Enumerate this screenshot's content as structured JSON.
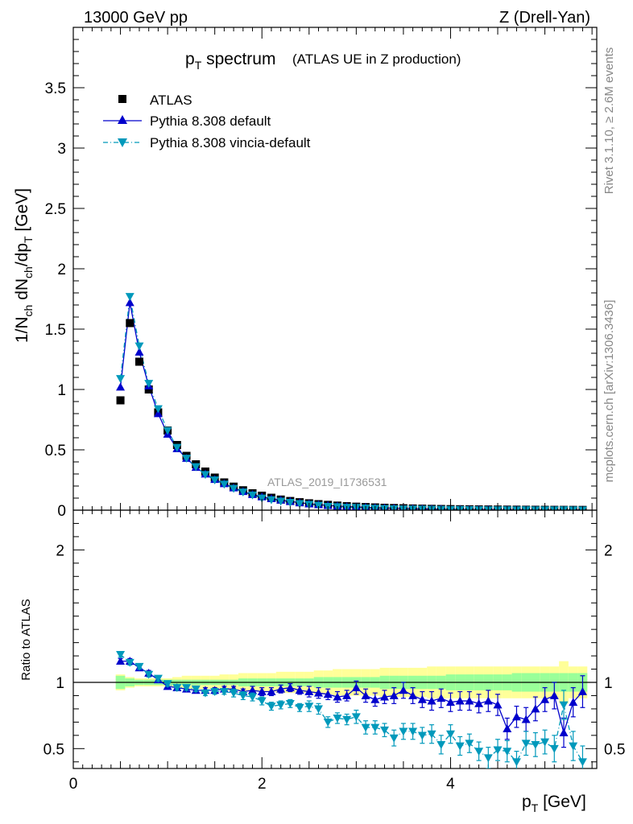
{
  "header": {
    "energy": "13000 GeV pp",
    "process": "Z (Drell-Yan)"
  },
  "main_title": "p",
  "main_title_sub": "T",
  "main_title_rest": " spectrum",
  "main_title_suffix": "(ATLAS UE in Z production)",
  "side_rivet": "Rivet 3.1.10, ≥ 2.6M events",
  "side_mcplots": "mcplots.cern.ch [arXiv:1306.3436]",
  "analysis_id": "ATLAS_2019_I1736531",
  "ylabel_main": "1/N_ch dN_ch/dp_T [GeV]",
  "ylabel_ratio": "Ratio to ATLAS",
  "xlabel": "p_T [GeV]",
  "chart_data": [
    {
      "type": "scatter",
      "panel": "main",
      "x": [
        0.5,
        0.6,
        0.7,
        0.8,
        0.9,
        1.0,
        1.1,
        1.2,
        1.3,
        1.4,
        1.5,
        1.6,
        1.7,
        1.8,
        1.9,
        2.0,
        2.1,
        2.2,
        2.3,
        2.4,
        2.5,
        2.6,
        2.7,
        2.8,
        2.9,
        3.0,
        3.1,
        3.2,
        3.3,
        3.4,
        3.5,
        3.6,
        3.7,
        3.8,
        3.9,
        4.0,
        4.1,
        4.2,
        4.3,
        4.4,
        4.5,
        4.6,
        4.7,
        4.8,
        4.9,
        5.0,
        5.1,
        5.2,
        5.3,
        5.4
      ],
      "series": [
        {
          "name": "ATLAS",
          "marker": "square",
          "color": "#000000",
          "values": [
            0.91,
            1.55,
            1.23,
            1.0,
            0.81,
            0.66,
            0.54,
            0.45,
            0.38,
            0.32,
            0.27,
            0.23,
            0.195,
            0.165,
            0.14,
            0.12,
            0.103,
            0.088,
            0.076,
            0.066,
            0.057,
            0.05,
            0.044,
            0.038,
            0.033,
            0.029,
            0.026,
            0.023,
            0.02,
            0.018,
            0.016,
            0.014,
            0.0125,
            0.011,
            0.0098,
            0.0088,
            0.0079,
            0.007,
            0.0063,
            0.0057,
            0.0051,
            0.0046,
            0.0042,
            0.0038,
            0.0034,
            0.0031,
            0.0028,
            0.0025,
            0.0023,
            0.0021
          ]
        },
        {
          "name": "Pythia 8.308 default",
          "marker": "triangle-up",
          "color": "#0000cc",
          "line": "solid",
          "values": [
            1.02,
            1.72,
            1.31,
            1.03,
            0.8,
            0.63,
            0.51,
            0.43,
            0.355,
            0.3,
            0.255,
            0.22,
            0.185,
            0.155,
            0.13,
            0.111,
            0.096,
            0.084,
            0.073,
            0.062,
            0.053,
            0.046,
            0.039,
            0.034,
            0.029,
            0.028,
            0.023,
            0.02,
            0.018,
            0.016,
            0.015,
            0.0125,
            0.011,
            0.0095,
            0.0085,
            0.0075,
            0.0068,
            0.006,
            0.0053,
            0.0049,
            0.0042,
            0.003,
            0.0031,
            0.0027,
            0.0027,
            0.0027,
            0.0025,
            0.0016,
            0.0019,
            0.002
          ]
        },
        {
          "name": "Pythia 8.308 vincia-default",
          "marker": "triangle-down",
          "color": "#0099bb",
          "line": "dashdot",
          "values": [
            1.09,
            1.77,
            1.36,
            1.05,
            0.84,
            0.66,
            0.52,
            0.43,
            0.36,
            0.295,
            0.25,
            0.215,
            0.18,
            0.15,
            0.125,
            0.1,
            0.086,
            0.074,
            0.064,
            0.054,
            0.047,
            0.04,
            0.031,
            0.028,
            0.023,
            0.022,
            0.017,
            0.015,
            0.013,
            0.011,
            0.01,
            0.009,
            0.0078,
            0.0067,
            0.006,
            0.0052,
            0.0046,
            0.004,
            0.0035,
            0.0024,
            0.0025,
            0.0022,
            0.0017,
            0.0021,
            0.0018,
            0.0017,
            0.0014,
            0.0021,
            0.0012,
            0.0009
          ]
        }
      ],
      "ylim": [
        0,
        4
      ],
      "xlim": [
        0,
        5.55
      ],
      "yticks": [
        "0",
        "0.5",
        "1",
        "1.5",
        "2",
        "2.5",
        "3",
        "3.5"
      ],
      "legend_placement": "top-left"
    },
    {
      "type": "line",
      "panel": "ratio",
      "x": [
        0.5,
        0.6,
        0.7,
        0.8,
        0.9,
        1.0,
        1.1,
        1.2,
        1.3,
        1.4,
        1.5,
        1.6,
        1.7,
        1.8,
        1.9,
        2.0,
        2.1,
        2.2,
        2.3,
        2.4,
        2.5,
        2.6,
        2.7,
        2.8,
        2.9,
        3.0,
        3.1,
        3.2,
        3.3,
        3.4,
        3.5,
        3.6,
        3.7,
        3.8,
        3.9,
        4.0,
        4.1,
        4.2,
        4.3,
        4.4,
        4.5,
        4.6,
        4.7,
        4.8,
        4.9,
        5.0,
        5.1,
        5.2,
        5.3,
        5.4
      ],
      "band_stat_half": [
        0.05,
        0.03,
        0.02,
        0.02,
        0.02,
        0.02,
        0.02,
        0.02,
        0.02,
        0.02,
        0.02,
        0.02,
        0.02,
        0.03,
        0.03,
        0.03,
        0.03,
        0.03,
        0.03,
        0.03,
        0.03,
        0.04,
        0.04,
        0.04,
        0.04,
        0.04,
        0.04,
        0.04,
        0.05,
        0.05,
        0.05,
        0.05,
        0.05,
        0.05,
        0.05,
        0.06,
        0.06,
        0.06,
        0.06,
        0.06,
        0.06,
        0.06,
        0.07,
        0.07,
        0.07,
        0.07,
        0.07,
        0.07,
        0.07,
        0.07
      ],
      "band_total_half": [
        0.06,
        0.04,
        0.03,
        0.03,
        0.03,
        0.03,
        0.04,
        0.05,
        0.05,
        0.05,
        0.05,
        0.06,
        0.06,
        0.07,
        0.07,
        0.07,
        0.07,
        0.08,
        0.08,
        0.08,
        0.08,
        0.09,
        0.09,
        0.1,
        0.1,
        0.1,
        0.1,
        0.1,
        0.11,
        0.11,
        0.11,
        0.11,
        0.11,
        0.12,
        0.12,
        0.12,
        0.12,
        0.12,
        0.12,
        0.12,
        0.12,
        0.12,
        0.12,
        0.12,
        0.12,
        0.12,
        0.12,
        0.16,
        0.12,
        0.12
      ],
      "series": [
        {
          "name": "Pythia 8.308 default",
          "marker": "triangle-up",
          "color": "#0000cc",
          "line": "solid",
          "values": [
            1.16,
            1.16,
            1.11,
            1.07,
            1.02,
            0.97,
            0.96,
            0.95,
            0.94,
            0.94,
            0.94,
            0.95,
            0.95,
            0.93,
            0.94,
            0.93,
            0.93,
            0.95,
            0.96,
            0.94,
            0.93,
            0.92,
            0.91,
            0.89,
            0.9,
            0.96,
            0.9,
            0.87,
            0.89,
            0.9,
            0.94,
            0.9,
            0.87,
            0.86,
            0.88,
            0.85,
            0.86,
            0.86,
            0.84,
            0.86,
            0.83,
            0.65,
            0.74,
            0.72,
            0.8,
            0.87,
            0.9,
            0.62,
            0.85,
            0.93
          ],
          "errors": [
            0.02,
            0.02,
            0.02,
            0.02,
            0.02,
            0.02,
            0.02,
            0.02,
            0.02,
            0.02,
            0.02,
            0.02,
            0.02,
            0.02,
            0.03,
            0.03,
            0.03,
            0.03,
            0.03,
            0.03,
            0.04,
            0.04,
            0.04,
            0.04,
            0.04,
            0.05,
            0.05,
            0.05,
            0.05,
            0.06,
            0.06,
            0.06,
            0.06,
            0.07,
            0.07,
            0.07,
            0.07,
            0.07,
            0.07,
            0.08,
            0.08,
            0.08,
            0.08,
            0.09,
            0.09,
            0.09,
            0.1,
            0.11,
            0.11,
            0.12
          ]
        },
        {
          "name": "Pythia 8.308 vincia-default",
          "marker": "triangle-down",
          "color": "#0099bb",
          "line": "dashdot",
          "values": [
            1.21,
            1.15,
            1.12,
            1.06,
            1.03,
            0.99,
            0.96,
            0.96,
            0.95,
            0.92,
            0.93,
            0.93,
            0.92,
            0.9,
            0.89,
            0.86,
            0.82,
            0.83,
            0.84,
            0.81,
            0.82,
            0.8,
            0.7,
            0.73,
            0.72,
            0.74,
            0.66,
            0.66,
            0.64,
            0.58,
            0.63,
            0.63,
            0.6,
            0.61,
            0.53,
            0.61,
            0.52,
            0.54,
            0.48,
            0.43,
            0.49,
            0.48,
            0.4,
            0.54,
            0.53,
            0.55,
            0.5,
            0.83,
            0.52,
            0.4
          ],
          "errors": [
            0.02,
            0.02,
            0.02,
            0.02,
            0.02,
            0.02,
            0.02,
            0.02,
            0.02,
            0.02,
            0.02,
            0.02,
            0.03,
            0.03,
            0.03,
            0.03,
            0.03,
            0.03,
            0.03,
            0.03,
            0.04,
            0.04,
            0.04,
            0.04,
            0.04,
            0.05,
            0.05,
            0.05,
            0.05,
            0.06,
            0.06,
            0.06,
            0.06,
            0.07,
            0.07,
            0.07,
            0.07,
            0.07,
            0.07,
            0.08,
            0.08,
            0.08,
            0.08,
            0.09,
            0.09,
            0.09,
            0.1,
            0.11,
            0.11,
            0.12
          ]
        }
      ],
      "ylim": [
        0.35,
        2.3
      ],
      "xlim": [
        0,
        5.55
      ],
      "yticks": [
        "0.5",
        "1",
        "2"
      ],
      "xticks": [
        "0",
        "2",
        "4"
      ],
      "band_colors": {
        "total": "#ffff99",
        "stat": "#99ff99"
      }
    }
  ]
}
